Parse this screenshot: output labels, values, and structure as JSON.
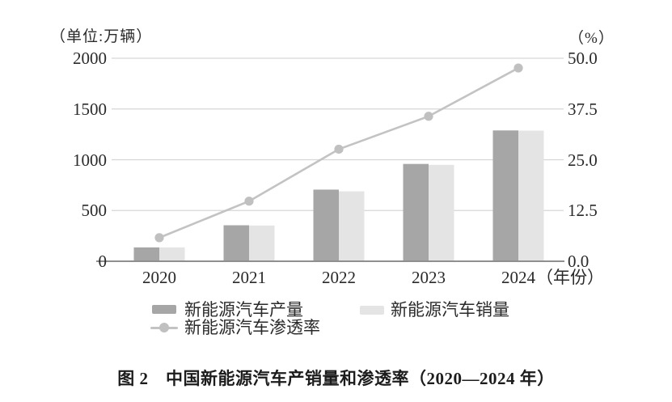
{
  "chart_data": {
    "type": "bar",
    "title": "图 2　中国新能源汽车产销量和渗透率（2020—2024 年）",
    "unit_left": "（单位:万辆）",
    "unit_right": "（%）",
    "categories": [
      "2020",
      "2021",
      "2022",
      "2023",
      "2024"
    ],
    "x_axis_suffix": "（年份）",
    "left_axis": {
      "min": 0,
      "max": 2000,
      "ticks": [
        0,
        500,
        1000,
        1500,
        2000
      ]
    },
    "right_axis": {
      "min": 0,
      "max": 50,
      "ticks": [
        "0.0",
        "12.5",
        "25.0",
        "37.5",
        "50.0"
      ]
    },
    "series": [
      {
        "name": "新能源汽车产量",
        "type": "bar",
        "axis": "left",
        "color": "#a6a6a6",
        "values": [
          136.6,
          354.5,
          705.8,
          958.7,
          1288.8
        ]
      },
      {
        "name": "新能源汽车销量",
        "type": "bar",
        "axis": "left",
        "color": "#e4e4e4",
        "values": [
          136.7,
          352.1,
          688.7,
          949.5,
          1286.6
        ]
      },
      {
        "name": "新能源汽车渗透率",
        "type": "line",
        "axis": "right",
        "color": "#c3c3c3",
        "marker_color": "#c0c0c0",
        "values": [
          5.8,
          14.8,
          27.6,
          35.7,
          47.6
        ]
      }
    ],
    "grid": true,
    "legend_position": "bottom",
    "colors": {
      "grid": "#d6d6d6",
      "axis": "#8f8f8f"
    }
  },
  "caption": "图 2　中国新能源汽车产销量和渗透率（2020—2024 年）"
}
